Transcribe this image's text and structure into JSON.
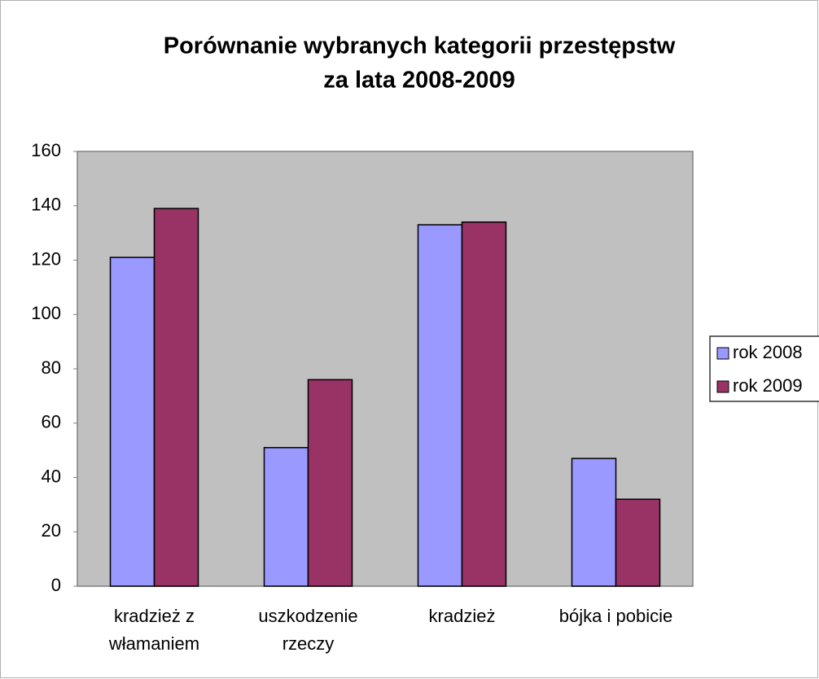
{
  "chart_data": {
    "type": "bar",
    "title": [
      "Porównanie wybranych kategorii przestępstw",
      "za lata 2008-2009"
    ],
    "categories": [
      "kradzież z włamaniem",
      "uszkodzenie rzeczy",
      "kradzież",
      "bójka i pobicie"
    ],
    "series": [
      {
        "name": "rok 2008",
        "color": "#9999ff",
        "values": [
          121,
          51,
          133,
          47
        ]
      },
      {
        "name": "rok 2009",
        "color": "#993366",
        "values": [
          139,
          76,
          134,
          32
        ]
      }
    ],
    "ylim": [
      0,
      160
    ],
    "yticks": [
      0,
      20,
      40,
      60,
      80,
      100,
      120,
      140,
      160
    ],
    "grid": false,
    "legend": "right"
  }
}
